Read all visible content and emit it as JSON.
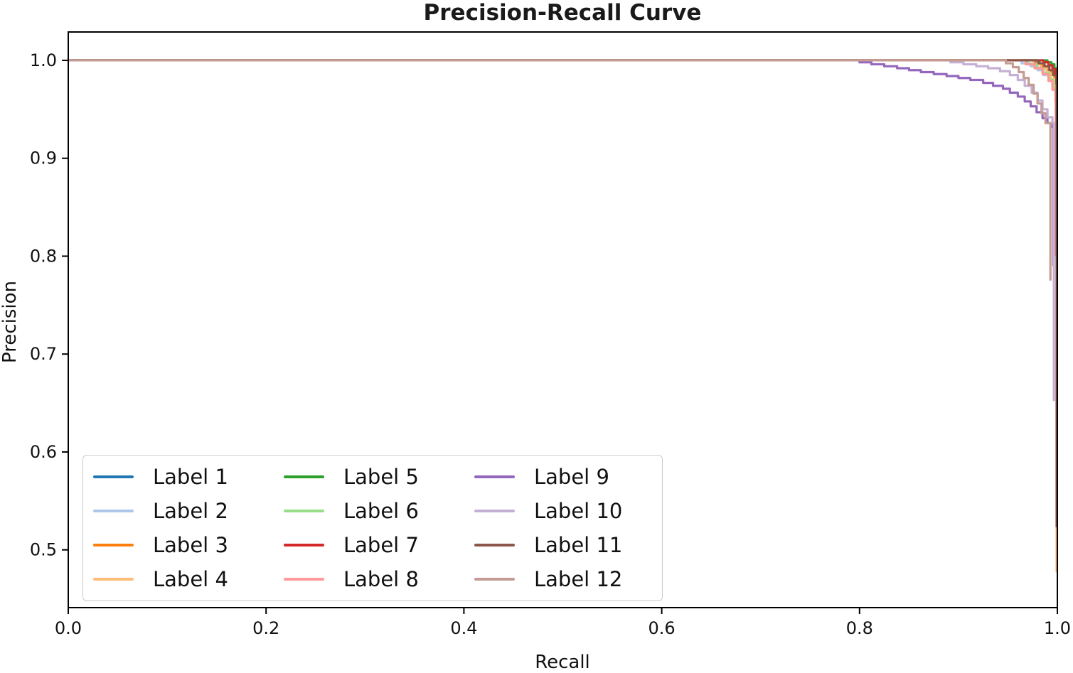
{
  "figure": {
    "background_color": "#ffffff",
    "axis_color": "#000000",
    "title_color": "#1a1a1a",
    "legend_border_color": "#cccccc"
  },
  "chart_data": {
    "type": "line",
    "title": "Precision-Recall Curve",
    "xlabel": "Recall",
    "ylabel": "Precision",
    "xlim": [
      0.0,
      1.0
    ],
    "ylim": [
      0.441,
      1.029
    ],
    "x_ticks": [
      0.0,
      0.2,
      0.4,
      0.6,
      0.8,
      1.0
    ],
    "x_tick_labels": [
      "0.0",
      "0.2",
      "0.4",
      "0.6",
      "0.8",
      "1.0"
    ],
    "y_ticks": [
      0.5,
      0.6,
      0.7,
      0.8,
      0.9,
      1.0
    ],
    "y_tick_labels": [
      "0.5",
      "0.6",
      "0.7",
      "0.8",
      "0.9",
      "1.0"
    ],
    "grid": false,
    "legend_position": "lower left",
    "legend_columns": 3,
    "interpolation": "step-post",
    "series": [
      {
        "name": "Label 1",
        "color": "#1f77b4",
        "points": [
          [
            0,
            1
          ],
          [
            0.97,
            1
          ],
          [
            0.976,
            0.998
          ],
          [
            0.982,
            0.996
          ],
          [
            0.987,
            0.993
          ],
          [
            0.991,
            0.99
          ],
          [
            0.995,
            0.986
          ],
          [
            0.998,
            0.98
          ],
          [
            0.9985,
            0.93
          ]
        ]
      },
      {
        "name": "Label 2",
        "color": "#aec7e8",
        "points": [
          [
            0,
            1
          ],
          [
            0.955,
            1
          ],
          [
            0.964,
            0.997
          ],
          [
            0.973,
            0.994
          ],
          [
            0.98,
            0.99
          ],
          [
            0.986,
            0.985
          ],
          [
            0.991,
            0.98
          ],
          [
            0.995,
            0.974
          ],
          [
            0.998,
            0.966
          ],
          [
            0.9985,
            0.9
          ]
        ]
      },
      {
        "name": "Label 3",
        "color": "#ff7f0e",
        "points": [
          [
            0,
            1
          ],
          [
            0.972,
            1
          ],
          [
            0.979,
            0.997
          ],
          [
            0.985,
            0.994
          ],
          [
            0.99,
            0.99
          ],
          [
            0.994,
            0.985
          ],
          [
            0.997,
            0.978
          ],
          [
            0.999,
            0.965
          ],
          [
            0.999,
            0.88
          ]
        ]
      },
      {
        "name": "Label 4",
        "color": "#ffbb78",
        "points": [
          [
            0,
            1
          ],
          [
            0.968,
            1
          ],
          [
            0.976,
            0.996
          ],
          [
            0.983,
            0.992
          ],
          [
            0.989,
            0.987
          ],
          [
            0.993,
            0.981
          ],
          [
            0.997,
            0.972
          ],
          [
            0.9993,
            0.955
          ],
          [
            0.9993,
            0.477
          ]
        ]
      },
      {
        "name": "Label 5",
        "color": "#2ca02c",
        "points": [
          [
            0,
            1
          ],
          [
            0.985,
            1
          ],
          [
            0.99,
            0.998
          ],
          [
            0.994,
            0.996
          ],
          [
            0.997,
            0.992
          ],
          [
            0.999,
            0.985
          ],
          [
            0.9998,
            0.97
          ],
          [
            0.9998,
            0.95
          ]
        ]
      },
      {
        "name": "Label 6",
        "color": "#98df8a",
        "points": [
          [
            0,
            1
          ],
          [
            0.96,
            1
          ],
          [
            0.97,
            0.996
          ],
          [
            0.979,
            0.992
          ],
          [
            0.986,
            0.987
          ],
          [
            0.992,
            0.98
          ],
          [
            0.996,
            0.971
          ],
          [
            0.9985,
            0.958
          ],
          [
            0.9985,
            0.85
          ]
        ]
      },
      {
        "name": "Label 7",
        "color": "#d62728",
        "points": [
          [
            0,
            1
          ],
          [
            0.98,
            1
          ],
          [
            0.986,
            0.998
          ],
          [
            0.991,
            0.995
          ],
          [
            0.995,
            0.991
          ],
          [
            0.998,
            0.985
          ],
          [
            0.9995,
            0.975
          ],
          [
            0.9995,
            0.92
          ]
        ]
      },
      {
        "name": "Label 8",
        "color": "#ff9896",
        "points": [
          [
            0,
            1
          ],
          [
            0.958,
            1
          ],
          [
            0.968,
            0.996
          ],
          [
            0.977,
            0.992
          ],
          [
            0.985,
            0.986
          ],
          [
            0.991,
            0.979
          ],
          [
            0.995,
            0.97
          ],
          [
            0.998,
            0.958
          ],
          [
            0.9985,
            0.8
          ]
        ]
      },
      {
        "name": "Label 9",
        "color": "#9467bd",
        "points": [
          [
            0,
            1
          ],
          [
            0.79,
            1
          ],
          [
            0.8,
            0.998
          ],
          [
            0.812,
            0.996
          ],
          [
            0.825,
            0.994
          ],
          [
            0.838,
            0.992
          ],
          [
            0.85,
            0.99
          ],
          [
            0.862,
            0.988
          ],
          [
            0.875,
            0.986
          ],
          [
            0.888,
            0.984
          ],
          [
            0.9,
            0.982
          ],
          [
            0.912,
            0.98
          ],
          [
            0.925,
            0.977
          ],
          [
            0.935,
            0.974
          ],
          [
            0.945,
            0.971
          ],
          [
            0.952,
            0.967
          ],
          [
            0.96,
            0.963
          ],
          [
            0.967,
            0.958
          ],
          [
            0.973,
            0.953
          ],
          [
            0.979,
            0.947
          ],
          [
            0.985,
            0.941
          ],
          [
            0.99,
            0.936
          ],
          [
            0.995,
            0.932
          ],
          [
            0.996,
            0.79
          ]
        ]
      },
      {
        "name": "Label 10",
        "color": "#c5b0d5",
        "points": [
          [
            0,
            1
          ],
          [
            0.88,
            1
          ],
          [
            0.892,
            0.998
          ],
          [
            0.905,
            0.996
          ],
          [
            0.918,
            0.994
          ],
          [
            0.93,
            0.992
          ],
          [
            0.942,
            0.989
          ],
          [
            0.952,
            0.985
          ],
          [
            0.96,
            0.98
          ],
          [
            0.967,
            0.974
          ],
          [
            0.974,
            0.967
          ],
          [
            0.98,
            0.959
          ],
          [
            0.985,
            0.95
          ],
          [
            0.99,
            0.942
          ],
          [
            0.995,
            0.936
          ],
          [
            0.9965,
            0.652
          ]
        ]
      },
      {
        "name": "Label 11",
        "color": "#8c564b",
        "points": [
          [
            0,
            1
          ],
          [
            0.975,
            1
          ],
          [
            0.981,
            0.997
          ],
          [
            0.987,
            0.994
          ],
          [
            0.992,
            0.99
          ],
          [
            0.996,
            0.985
          ],
          [
            0.999,
            0.976
          ],
          [
            0.9993,
            0.523
          ]
        ]
      },
      {
        "name": "Label 12",
        "color": "#c49c94",
        "points": [
          [
            0,
            1
          ],
          [
            0.94,
            1
          ],
          [
            0.948,
            0.997
          ],
          [
            0.955,
            0.993
          ],
          [
            0.961,
            0.988
          ],
          [
            0.966,
            0.982
          ],
          [
            0.971,
            0.975
          ],
          [
            0.976,
            0.966
          ],
          [
            0.98,
            0.956
          ],
          [
            0.984,
            0.946
          ],
          [
            0.988,
            0.936
          ],
          [
            0.993,
            0.926
          ],
          [
            0.993,
            0.775
          ]
        ]
      }
    ]
  }
}
